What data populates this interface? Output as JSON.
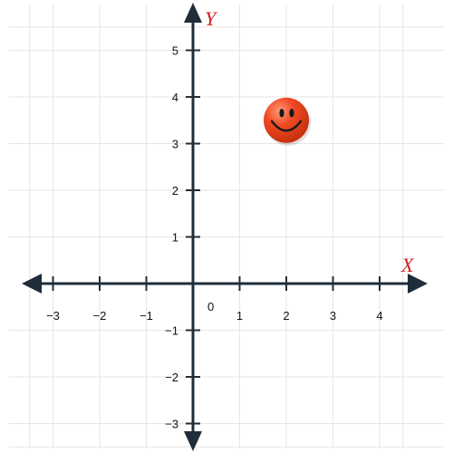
{
  "chart_data": {
    "type": "scatter",
    "title": "",
    "xlabel": "X",
    "ylabel": "Y",
    "xlim": [
      -3.5,
      4.5
    ],
    "ylim": [
      -3.5,
      5.5
    ],
    "grid": true,
    "x_ticks": [
      -3,
      -2,
      -1,
      1,
      2,
      3,
      4
    ],
    "y_ticks": [
      -3,
      -2,
      -1,
      1,
      2,
      3,
      4,
      5
    ],
    "x_tick_labels": [
      "−3",
      "−2",
      "−1",
      "1",
      "2",
      "3",
      "4"
    ],
    "y_tick_labels": [
      "−3",
      "−2",
      "−1",
      "1",
      "2",
      "3",
      "4",
      "5"
    ],
    "origin_label": "0",
    "points": [
      {
        "x": 2,
        "y": 3.5,
        "marker": "smiley-face-icon",
        "color": "#f04a24"
      }
    ]
  },
  "colors": {
    "axis": "#1f2d3a",
    "grid": "#e6e6e6",
    "axis_label": "#cc1f1f",
    "smiley_fill": "#f04a24",
    "smiley_highlight": "#ff9a7a",
    "smiley_features": "#1a1a1a"
  }
}
